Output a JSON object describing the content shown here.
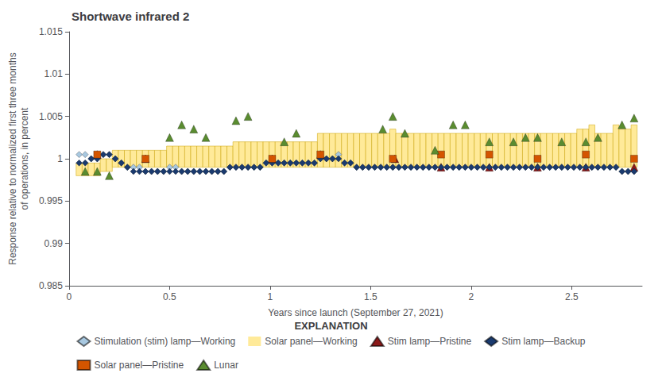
{
  "chart_data": {
    "type": "scatter",
    "title": "Shortwave infrared 2",
    "xlabel": "Years since launch (September 27, 2021)",
    "ylabel": "Response relative to normalized first three months\nof operations, in percent",
    "legend_title": "EXPLANATION",
    "xlim": [
      0,
      2.85
    ],
    "ylim": [
      0.985,
      1.015
    ],
    "xticks": [
      0,
      0.5,
      1.0,
      1.5,
      2.0,
      2.5
    ],
    "yticks": [
      0.985,
      0.99,
      0.995,
      1.0,
      1.005,
      1.01,
      1.015
    ],
    "grid": false,
    "legend": "bottom",
    "series": [
      {
        "name": "Stimulation (stim) lamp—Working",
        "type": "scatter",
        "marker": "diamond",
        "color": "#a8c8e0",
        "x": [
          0.05,
          0.08,
          0.11,
          0.14,
          0.17,
          0.2,
          0.23,
          0.26,
          0.29,
          0.32,
          0.35,
          0.38,
          0.41,
          0.44,
          0.47,
          0.5,
          0.53,
          0.56,
          0.59,
          0.62,
          0.65,
          0.68,
          0.71,
          0.74,
          0.77,
          0.8,
          0.83,
          0.86,
          0.89,
          0.92,
          0.95,
          0.98,
          1.01,
          1.04,
          1.07,
          1.1,
          1.13,
          1.16,
          1.19,
          1.22,
          1.25,
          1.28,
          1.31,
          1.34,
          1.37,
          1.4,
          1.43,
          1.46,
          1.49,
          1.52,
          1.55,
          1.58,
          1.61,
          1.64,
          1.67,
          1.7,
          1.73,
          1.76,
          1.79,
          1.82,
          1.85,
          1.88,
          1.91,
          1.94,
          1.97,
          2.0,
          2.03,
          2.06,
          2.09,
          2.12,
          2.15,
          2.18,
          2.21,
          2.24,
          2.27,
          2.3,
          2.33,
          2.36,
          2.39,
          2.42,
          2.45,
          2.48,
          2.51,
          2.54,
          2.57,
          2.6,
          2.63,
          2.66,
          2.69,
          2.72,
          2.75,
          2.78,
          2.81
        ],
        "values": [
          1.0005,
          1.0005,
          1.0,
          1.0,
          1.0005,
          1.0005,
          1.0,
          0.9995,
          0.999,
          0.999,
          0.999,
          0.9985,
          0.9985,
          0.9985,
          0.9985,
          0.999,
          0.999,
          0.9985,
          0.9985,
          0.9985,
          0.9985,
          0.9985,
          0.9985,
          0.9985,
          0.9985,
          0.999,
          0.999,
          0.999,
          0.999,
          0.999,
          0.999,
          0.9995,
          0.9995,
          0.9995,
          0.9995,
          0.9995,
          0.9995,
          0.9995,
          0.9995,
          0.9995,
          1.0,
          1.0,
          1.0,
          1.0005,
          0.9995,
          0.9995,
          0.999,
          0.999,
          0.999,
          0.999,
          0.999,
          0.999,
          0.999,
          0.999,
          0.999,
          0.999,
          0.999,
          0.999,
          0.999,
          0.999,
          0.999,
          0.999,
          0.999,
          0.999,
          0.999,
          0.999,
          0.999,
          0.999,
          0.999,
          0.999,
          0.999,
          0.999,
          0.999,
          0.999,
          0.999,
          0.999,
          0.999,
          0.999,
          0.999,
          0.999,
          0.999,
          0.999,
          0.999,
          0.999,
          0.999,
          0.999,
          0.999,
          0.999,
          0.999,
          0.999,
          0.9985,
          0.9985,
          0.9985
        ]
      },
      {
        "name": "Solar panel—Working",
        "type": "box",
        "color": "#ffea99",
        "x": [
          0.05,
          0.08,
          0.11,
          0.14,
          0.17,
          0.2,
          0.23,
          0.26,
          0.29,
          0.32,
          0.35,
          0.38,
          0.41,
          0.44,
          0.47,
          0.5,
          0.53,
          0.56,
          0.59,
          0.62,
          0.65,
          0.68,
          0.71,
          0.74,
          0.77,
          0.8,
          0.83,
          0.86,
          0.89,
          0.92,
          0.95,
          0.98,
          1.01,
          1.04,
          1.07,
          1.1,
          1.13,
          1.16,
          1.19,
          1.22,
          1.25,
          1.28,
          1.31,
          1.34,
          1.37,
          1.4,
          1.43,
          1.46,
          1.49,
          1.52,
          1.55,
          1.58,
          1.61,
          1.64,
          1.67,
          1.7,
          1.73,
          1.76,
          1.79,
          1.82,
          1.85,
          1.88,
          1.91,
          1.94,
          1.97,
          2.0,
          2.03,
          2.06,
          2.09,
          2.12,
          2.15,
          2.18,
          2.21,
          2.24,
          2.27,
          2.3,
          2.33,
          2.36,
          2.39,
          2.42,
          2.45,
          2.48,
          2.51,
          2.54,
          2.57,
          2.6,
          2.63,
          2.66,
          2.69,
          2.72,
          2.75,
          2.78,
          2.81
        ],
        "lower": [
          0.998,
          0.998,
          0.998,
          0.998,
          0.9985,
          0.9985,
          0.999,
          0.999,
          0.999,
          0.999,
          0.999,
          0.999,
          0.999,
          0.999,
          0.999,
          0.999,
          0.999,
          0.999,
          0.999,
          0.999,
          0.999,
          0.999,
          0.999,
          0.999,
          0.999,
          0.999,
          0.999,
          0.999,
          0.999,
          0.999,
          0.999,
          0.999,
          0.999,
          0.999,
          0.999,
          0.999,
          0.999,
          0.999,
          0.999,
          0.999,
          0.999,
          0.999,
          0.999,
          0.999,
          0.999,
          0.999,
          0.999,
          0.999,
          0.999,
          0.999,
          0.999,
          0.999,
          0.999,
          0.999,
          0.999,
          0.999,
          0.999,
          0.999,
          0.999,
          0.999,
          0.999,
          0.999,
          0.999,
          0.999,
          0.999,
          0.999,
          0.999,
          0.999,
          0.999,
          0.999,
          0.999,
          0.999,
          0.999,
          0.999,
          0.999,
          0.999,
          0.999,
          0.999,
          0.999,
          0.999,
          0.999,
          0.999,
          0.999,
          0.999,
          0.999,
          0.999,
          0.999,
          0.999,
          0.999,
          0.999,
          0.999,
          0.999,
          0.999
        ],
        "upper": [
          0.9995,
          0.9995,
          0.9995,
          0.9995,
          1.0,
          1.0,
          1.001,
          1.001,
          1.001,
          1.001,
          1.001,
          1.001,
          1.001,
          1.001,
          1.001,
          1.0015,
          1.0015,
          1.0015,
          1.0015,
          1.0015,
          1.0015,
          1.0015,
          1.0015,
          1.0015,
          1.0015,
          1.0015,
          1.002,
          1.002,
          1.002,
          1.002,
          1.002,
          1.002,
          1.002,
          1.002,
          1.002,
          1.002,
          1.002,
          1.002,
          1.002,
          1.002,
          1.003,
          1.003,
          1.003,
          1.003,
          1.003,
          1.003,
          1.003,
          1.003,
          1.003,
          1.003,
          1.003,
          1.003,
          1.0035,
          1.003,
          1.003,
          1.003,
          1.003,
          1.003,
          1.003,
          1.003,
          1.003,
          1.003,
          1.003,
          1.003,
          1.003,
          1.003,
          1.003,
          1.003,
          1.003,
          1.003,
          1.003,
          1.003,
          1.003,
          1.003,
          1.003,
          1.003,
          1.003,
          1.003,
          1.003,
          1.003,
          1.003,
          1.003,
          1.003,
          1.0035,
          1.0035,
          1.004,
          1.003,
          1.003,
          1.003,
          1.004,
          1.0035,
          1.0035,
          1.004
        ]
      },
      {
        "name": "Stim lamp—Pristine",
        "type": "scatter",
        "marker": "triangle",
        "color": "#8b1a1a",
        "x": [
          0.14,
          0.38,
          1.01,
          1.25,
          1.62,
          1.85,
          2.09,
          2.33,
          2.57,
          2.81
        ],
        "values": [
          1.0005,
          1.0,
          1.0,
          1.0005,
          1.0,
          0.999,
          0.999,
          0.999,
          0.999,
          0.999
        ]
      },
      {
        "name": "Stim lamp—Backup",
        "type": "scatter",
        "marker": "diamond",
        "color": "#1a3a6e",
        "x": [
          0.05,
          0.08,
          0.11,
          0.14,
          0.17,
          0.2,
          0.23,
          0.26,
          0.29,
          0.32,
          0.35,
          0.38,
          0.41,
          0.44,
          0.47,
          0.5,
          0.53,
          0.56,
          0.59,
          0.62,
          0.65,
          0.68,
          0.71,
          0.74,
          0.77,
          0.8,
          0.83,
          0.86,
          0.89,
          0.92,
          0.95,
          0.98,
          1.01,
          1.04,
          1.07,
          1.1,
          1.13,
          1.16,
          1.19,
          1.22,
          1.25,
          1.28,
          1.31,
          1.34,
          1.37,
          1.4,
          1.43,
          1.46,
          1.49,
          1.52,
          1.55,
          1.58,
          1.61,
          1.64,
          1.67,
          1.7,
          1.73,
          1.76,
          1.79,
          1.82,
          1.85,
          1.88,
          1.91,
          1.94,
          1.97,
          2.0,
          2.03,
          2.06,
          2.09,
          2.12,
          2.15,
          2.18,
          2.21,
          2.24,
          2.27,
          2.3,
          2.33,
          2.36,
          2.39,
          2.42,
          2.45,
          2.48,
          2.51,
          2.54,
          2.57,
          2.6,
          2.63,
          2.66,
          2.69,
          2.72,
          2.75,
          2.78,
          2.81
        ],
        "values": [
          0.9995,
          0.9995,
          1.0,
          1.0,
          1.0005,
          1.0005,
          1.0,
          0.9995,
          0.999,
          0.9985,
          0.9985,
          0.9985,
          0.9985,
          0.9985,
          0.9985,
          0.9985,
          0.9985,
          0.9985,
          0.9985,
          0.9985,
          0.9985,
          0.9985,
          0.9985,
          0.9985,
          0.9985,
          0.999,
          0.999,
          0.999,
          0.999,
          0.999,
          0.999,
          0.9995,
          0.9995,
          0.9995,
          0.9995,
          0.9995,
          0.9995,
          0.9995,
          0.9995,
          0.9995,
          1.0,
          1.0,
          1.0,
          1.0,
          0.9995,
          0.9995,
          0.999,
          0.999,
          0.999,
          0.999,
          0.999,
          0.999,
          0.999,
          0.999,
          0.999,
          0.999,
          0.999,
          0.999,
          0.999,
          0.999,
          0.999,
          0.999,
          0.999,
          0.999,
          0.999,
          0.999,
          0.999,
          0.999,
          0.999,
          0.999,
          0.999,
          0.999,
          0.999,
          0.999,
          0.999,
          0.999,
          0.999,
          0.999,
          0.999,
          0.999,
          0.999,
          0.999,
          0.999,
          0.999,
          0.999,
          0.999,
          0.999,
          0.999,
          0.999,
          0.999,
          0.9985,
          0.9985,
          0.9985
        ]
      },
      {
        "name": "Solar panel—Pristine",
        "type": "scatter",
        "marker": "square",
        "color": "#d45500",
        "x": [
          0.14,
          0.38,
          1.01,
          1.25,
          1.61,
          1.85,
          2.09,
          2.33,
          2.57,
          2.81
        ],
        "values": [
          1.0005,
          1.0,
          1.0,
          1.0005,
          1.0,
          1.0005,
          1.0005,
          1.0,
          1.0005,
          1.0
        ]
      },
      {
        "name": "Lunar",
        "type": "scatter",
        "marker": "triangle",
        "color": "#5a8c30",
        "x": [
          0.08,
          0.14,
          0.2,
          0.5,
          0.56,
          0.62,
          0.68,
          0.83,
          0.89,
          1.07,
          1.13,
          1.56,
          1.61,
          1.67,
          1.82,
          1.91,
          1.97,
          2.09,
          2.21,
          2.27,
          2.33,
          2.45,
          2.57,
          2.63,
          2.75,
          2.81
        ],
        "values": [
          0.9985,
          0.9985,
          0.998,
          1.0025,
          1.004,
          1.0035,
          1.0025,
          1.0045,
          1.005,
          1.002,
          1.003,
          1.0035,
          1.005,
          1.003,
          1.001,
          1.004,
          1.004,
          1.002,
          1.002,
          1.0025,
          1.0025,
          1.002,
          1.002,
          1.0025,
          1.004,
          1.0048
        ]
      }
    ]
  }
}
